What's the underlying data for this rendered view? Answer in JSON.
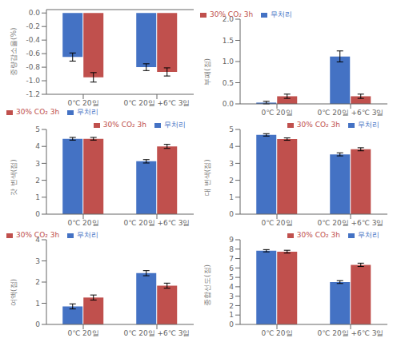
{
  "chart_data": [
    {
      "type": "bar",
      "ylabel": "중량감소율(%)",
      "categories": [
        "0℃ 20일",
        "0℃ 20일 +6℃ 3일"
      ],
      "series": [
        {
          "name": "무처리",
          "color": "#4472C4",
          "values": [
            -0.65,
            -0.8
          ],
          "errors": [
            0.06,
            0.05
          ]
        },
        {
          "name": "30% CO₂ 3h",
          "color": "#C0504D",
          "values": [
            -0.95,
            -0.87
          ],
          "errors": [
            0.07,
            0.06
          ]
        }
      ],
      "ylim": [
        -1.2,
        0.05
      ],
      "yticks": [
        {
          "value": 0,
          "label": "0.0"
        },
        -0.2,
        -0.4,
        -0.6,
        -0.8,
        {
          "value": -1,
          "label": "-1.0"
        },
        -1.2
      ],
      "legend": "lower left"
    },
    {
      "type": "bar",
      "ylabel": "부패(점)",
      "categories": [
        "0℃ 20일",
        "0℃ 20일 +6℃ 3일"
      ],
      "series": [
        {
          "name": "무처리",
          "color": "#4472C4",
          "values": [
            0.03,
            1.12
          ],
          "errors": [
            0.03,
            0.13
          ]
        },
        {
          "name": "30% CO₂ 3h",
          "color": "#C0504D",
          "values": [
            0.18,
            0.18
          ],
          "errors": [
            0.05,
            0.05
          ]
        }
      ],
      "ylim": [
        0,
        2.0
      ],
      "yticks": [
        {
          "value": 0,
          "label": "0.0"
        },
        0.5,
        {
          "value": 1,
          "label": "1.0"
        },
        1.5,
        {
          "value": 2,
          "label": "2.0"
        }
      ],
      "legend": "upper left"
    },
    {
      "type": "bar",
      "ylabel": "갓 변색(점)",
      "categories": [
        "0℃ 20일",
        "0℃ 20일 +6℃ 3일"
      ],
      "series": [
        {
          "name": "무처리",
          "color": "#4472C4",
          "values": [
            4.45,
            3.12
          ],
          "errors": [
            0.08,
            0.1
          ]
        },
        {
          "name": "30% CO₂ 3h",
          "color": "#C0504D",
          "values": [
            4.45,
            4.0
          ],
          "errors": [
            0.08,
            0.12
          ]
        }
      ],
      "ylim": [
        0,
        5
      ],
      "yticks": [
        0,
        1,
        2,
        3,
        4,
        5
      ],
      "legend": "upper right"
    },
    {
      "type": "bar",
      "ylabel": "대 변색(점)",
      "categories": [
        "0℃ 20일",
        "0℃ 20일 +6℃ 3일"
      ],
      "series": [
        {
          "name": "무처리",
          "color": "#4472C4",
          "values": [
            4.68,
            3.53
          ],
          "errors": [
            0.07,
            0.09
          ]
        },
        {
          "name": "30% CO₂ 3h",
          "color": "#C0504D",
          "values": [
            4.43,
            3.83
          ],
          "errors": [
            0.07,
            0.09
          ]
        }
      ],
      "ylim": [
        0,
        5
      ],
      "yticks": [
        0,
        1,
        2,
        3,
        4,
        5
      ],
      "legend": "upper right"
    },
    {
      "type": "bar",
      "ylabel": "여액(점)",
      "categories": [
        "0℃ 20일",
        "0℃ 20일 +6℃ 3일"
      ],
      "series": [
        {
          "name": "무처리",
          "color": "#4472C4",
          "values": [
            0.85,
            2.42
          ],
          "errors": [
            0.12,
            0.12
          ]
        },
        {
          "name": "30% CO₂ 3h",
          "color": "#C0504D",
          "values": [
            1.27,
            1.83
          ],
          "errors": [
            0.12,
            0.12
          ]
        }
      ],
      "ylim": [
        0,
        4
      ],
      "yticks": [
        0,
        1,
        2,
        3,
        4
      ],
      "legend": "upper left"
    },
    {
      "type": "bar",
      "ylabel": "종합선도(점)",
      "categories": [
        "0℃ 20일",
        "0℃ 20일 +6℃ 3일"
      ],
      "series": [
        {
          "name": "무처리",
          "color": "#4472C4",
          "values": [
            7.83,
            4.5
          ],
          "errors": [
            0.12,
            0.15
          ]
        },
        {
          "name": "30% CO₂ 3h",
          "color": "#C0504D",
          "values": [
            7.73,
            6.33
          ],
          "errors": [
            0.15,
            0.18
          ]
        }
      ],
      "ylim": [
        0,
        9
      ],
      "yticks": [
        0,
        1,
        2,
        3,
        4,
        5,
        6,
        7,
        8,
        9
      ],
      "legend": "upper right"
    }
  ]
}
